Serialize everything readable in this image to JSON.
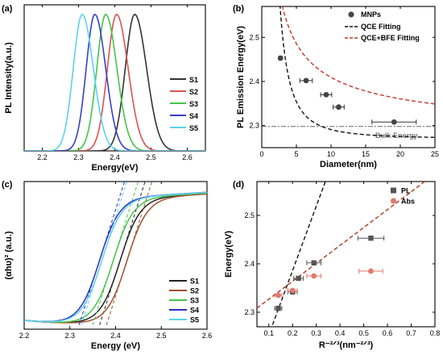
{
  "figure": {
    "panels": [
      {
        "letter": "(a)"
      },
      {
        "letter": "(b)"
      },
      {
        "letter": "(c)"
      },
      {
        "letter": "(d)"
      }
    ]
  },
  "chart_data": [
    {
      "panel": "(a)",
      "type": "line",
      "xlabel": "Energy(eV)",
      "ylabel": "PL Intensity(a.u.)",
      "xlim": [
        2.15,
        2.65
      ],
      "ylim": [
        0,
        1.07
      ],
      "xticks": [
        "2.2",
        "2.3",
        "2.4",
        "2.5",
        "2.6"
      ],
      "xtick_values": [
        2.2,
        2.3,
        2.4,
        2.5,
        2.6
      ],
      "legend_position": "right",
      "series": [
        {
          "name": "S1",
          "color": "#333333",
          "peak": 2.455,
          "width": 0.07
        },
        {
          "name": "S2",
          "color": "#d9534f",
          "peak": 2.405,
          "width": 0.068
        },
        {
          "name": "S3",
          "color": "#44c548",
          "peak": 2.375,
          "width": 0.066
        },
        {
          "name": "S4",
          "color": "#3a3ec8",
          "peak": 2.345,
          "width": 0.064
        },
        {
          "name": "S5",
          "color": "#5bd2ee",
          "peak": 2.31,
          "width": 0.066
        }
      ]
    },
    {
      "panel": "(b)",
      "type": "scatter",
      "xlabel": "Diameter(nm)",
      "ylabel": "PL Emission Energy(eV)",
      "xlim": [
        0,
        25
      ],
      "ylim": [
        2.25,
        2.57
      ],
      "xticks": [
        "0",
        "5",
        "10",
        "15",
        "20",
        "25"
      ],
      "xtick_values": [
        0,
        5,
        10,
        15,
        20,
        25
      ],
      "yticks": [
        "2.3",
        "2.4",
        "2.5"
      ],
      "ytick_values": [
        2.3,
        2.4,
        2.5
      ],
      "legend_position": "top-right",
      "bulk_energy": 2.298,
      "bulk_label": "Bulk Energy",
      "points": {
        "name": "MNPs",
        "color": "#444444",
        "x": [
          2.7,
          6.4,
          9.3,
          11.1,
          19.1
        ],
        "y": [
          2.453,
          2.402,
          2.37,
          2.342,
          2.308
        ],
        "xerr": [
          0.2,
          0.9,
          0.8,
          0.8,
          3.2
        ]
      },
      "fits": [
        {
          "name": "QCE Fitting",
          "color": "#111111",
          "style": "dashed",
          "E0": 2.27,
          "A": 2.1
        },
        {
          "name": "QCE+BFE Fitting",
          "color": "#c0392b",
          "style": "dashed",
          "E0": 2.275,
          "A": 0.6,
          "exponent": 0.65
        }
      ]
    },
    {
      "panel": "(c)",
      "type": "line",
      "xlabel": "Energy (eV)",
      "ylabel": "(αhυ)² (a.u.)",
      "xlim": [
        2.2,
        2.6
      ],
      "ylim": [
        0,
        1.07
      ],
      "xticks": [
        "2.2",
        "2.3",
        "2.4",
        "2.5",
        "2.6"
      ],
      "xtick_values": [
        2.2,
        2.3,
        2.4,
        2.5,
        2.6
      ],
      "legend_position": "bottom-right",
      "series": [
        {
          "name": "S1",
          "color": "#222222",
          "edge": 2.41
        },
        {
          "name": "S2",
          "color": "#a0502f",
          "edge": 2.425
        },
        {
          "name": "S3",
          "color": "#44c548",
          "edge": 2.395
        },
        {
          "name": "S4",
          "color": "#2a2ec0",
          "edge": 2.365
        },
        {
          "name": "S5",
          "color": "#5bd2ee",
          "edge": 2.37
        }
      ]
    },
    {
      "panel": "(d)",
      "type": "scatter",
      "xlabel": "R⁻²ᐟ³(nm⁻²ᐟ³)",
      "ylabel": "Energy(eV)",
      "xlim": [
        0.05,
        0.8
      ],
      "ylim": [
        2.27,
        2.57
      ],
      "xticks": [
        "0.1",
        "0.2",
        "0.3",
        "0.4",
        "0.5",
        "0.6",
        "0.7",
        "0.8"
      ],
      "xtick_values": [
        0.1,
        0.2,
        0.3,
        0.4,
        0.5,
        0.6,
        0.7,
        0.8
      ],
      "yticks": [
        "2.3",
        "2.4",
        "2.5"
      ],
      "ytick_values": [
        2.3,
        2.4,
        2.5
      ],
      "legend_position": "top-right",
      "series": [
        {
          "name": "PL",
          "color": "#555555",
          "marker": "square",
          "x": [
            0.14,
            0.2,
            0.225,
            0.29,
            0.53
          ],
          "y": [
            2.308,
            2.342,
            2.37,
            2.402,
            2.453
          ],
          "xerr": [
            0.015,
            0.02,
            0.02,
            0.03,
            0.055
          ],
          "fit": {
            "slope": 1.33,
            "intercept": 2.12,
            "color": "#111111"
          }
        },
        {
          "name": "Abs",
          "color": "#e07a6e",
          "marker": "circle",
          "x": [
            0.14,
            0.2,
            0.29,
            0.53
          ],
          "y": [
            2.335,
            2.345,
            2.375,
            2.385
          ],
          "xerr": [
            0.015,
            0.02,
            0.03,
            0.05
          ],
          "fit": {
            "slope": 0.37,
            "intercept": 2.29,
            "color": "#b5361e"
          }
        }
      ]
    }
  ]
}
